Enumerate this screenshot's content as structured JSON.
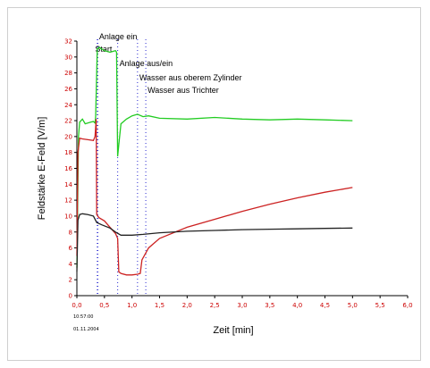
{
  "chart_data": {
    "type": "line",
    "xlabel": "Zeit [min]",
    "ylabel": "Feldstärke E-Feld [V/m]",
    "xlim": [
      0,
      6.0
    ],
    "ylim": [
      0,
      32
    ],
    "x_ticks": [
      "0,0",
      "0,5",
      "1,0",
      "1,5",
      "2,0",
      "2,5",
      "3,0",
      "3,5",
      "4,0",
      "4,5",
      "5,0",
      "5,5",
      "6,0"
    ],
    "y_ticks": [
      "0",
      "2",
      "4",
      "6",
      "8",
      "10",
      "12",
      "14",
      "16",
      "18",
      "20",
      "22",
      "24",
      "26",
      "28",
      "30",
      "32"
    ],
    "grid": false,
    "series": [
      {
        "color": "#22cc22",
        "points": [
          [
            0.0,
            3.5
          ],
          [
            0.03,
            20.0
          ],
          [
            0.05,
            21.8
          ],
          [
            0.1,
            22.2
          ],
          [
            0.15,
            21.6
          ],
          [
            0.25,
            21.8
          ],
          [
            0.3,
            21.9
          ],
          [
            0.33,
            21.7
          ],
          [
            0.34,
            22.5
          ],
          [
            0.37,
            31.0
          ],
          [
            0.4,
            31.2
          ],
          [
            0.5,
            30.8
          ],
          [
            0.6,
            30.6
          ],
          [
            0.7,
            30.8
          ],
          [
            0.72,
            30.6
          ],
          [
            0.74,
            17.5
          ],
          [
            0.76,
            19.0
          ],
          [
            0.8,
            21.6
          ],
          [
            0.9,
            22.2
          ],
          [
            1.0,
            22.6
          ],
          [
            1.1,
            22.8
          ],
          [
            1.2,
            22.5
          ],
          [
            1.3,
            22.6
          ],
          [
            1.5,
            22.3
          ],
          [
            2.0,
            22.2
          ],
          [
            2.5,
            22.4
          ],
          [
            3.0,
            22.2
          ],
          [
            3.5,
            22.1
          ],
          [
            4.0,
            22.2
          ],
          [
            4.5,
            22.1
          ],
          [
            5.0,
            22.0
          ]
        ]
      },
      {
        "color": "#cc2222",
        "points": [
          [
            0.0,
            5.0
          ],
          [
            0.02,
            18.0
          ],
          [
            0.05,
            19.8
          ],
          [
            0.1,
            19.7
          ],
          [
            0.2,
            19.6
          ],
          [
            0.3,
            19.5
          ],
          [
            0.33,
            20.0
          ],
          [
            0.35,
            22.2
          ],
          [
            0.36,
            10.2
          ],
          [
            0.4,
            9.8
          ],
          [
            0.5,
            9.4
          ],
          [
            0.6,
            8.6
          ],
          [
            0.7,
            7.8
          ],
          [
            0.74,
            7.2
          ],
          [
            0.76,
            3.0
          ],
          [
            0.8,
            2.8
          ],
          [
            0.9,
            2.6
          ],
          [
            1.0,
            2.6
          ],
          [
            1.1,
            2.7
          ],
          [
            1.15,
            2.8
          ],
          [
            1.18,
            4.5
          ],
          [
            1.3,
            6.0
          ],
          [
            1.5,
            7.2
          ],
          [
            2.0,
            8.6
          ],
          [
            2.5,
            9.6
          ],
          [
            3.0,
            10.6
          ],
          [
            3.5,
            11.5
          ],
          [
            4.0,
            12.3
          ],
          [
            4.5,
            13.0
          ],
          [
            5.0,
            13.6
          ]
        ]
      },
      {
        "color": "#222222",
        "points": [
          [
            0.0,
            3.0
          ],
          [
            0.02,
            9.5
          ],
          [
            0.05,
            10.2
          ],
          [
            0.1,
            10.3
          ],
          [
            0.2,
            10.2
          ],
          [
            0.3,
            10.0
          ],
          [
            0.36,
            9.2
          ],
          [
            0.45,
            8.9
          ],
          [
            0.6,
            8.5
          ],
          [
            0.7,
            8.0
          ],
          [
            0.8,
            7.6
          ],
          [
            1.0,
            7.6
          ],
          [
            1.2,
            7.7
          ],
          [
            1.5,
            7.9
          ],
          [
            2.0,
            8.1
          ],
          [
            2.5,
            8.2
          ],
          [
            3.0,
            8.3
          ],
          [
            3.5,
            8.35
          ],
          [
            4.0,
            8.4
          ],
          [
            4.5,
            8.45
          ],
          [
            5.0,
            8.5
          ]
        ]
      }
    ],
    "markers": [
      {
        "x": 0.37,
        "label": "Anlage ein",
        "style": "dotted"
      },
      {
        "x": 0.38,
        "label": "Start",
        "style": "dotted"
      },
      {
        "x": 0.74,
        "label": "Anlage aus/ein",
        "style": "dotted"
      },
      {
        "x": 1.1,
        "label": "Wasser aus oberem Zylinder",
        "style": "dotted"
      },
      {
        "x": 1.25,
        "label": "Wasser aus Trichter",
        "style": "dotted"
      }
    ],
    "footnote": [
      "10:57:00",
      "01.11.2004"
    ]
  }
}
